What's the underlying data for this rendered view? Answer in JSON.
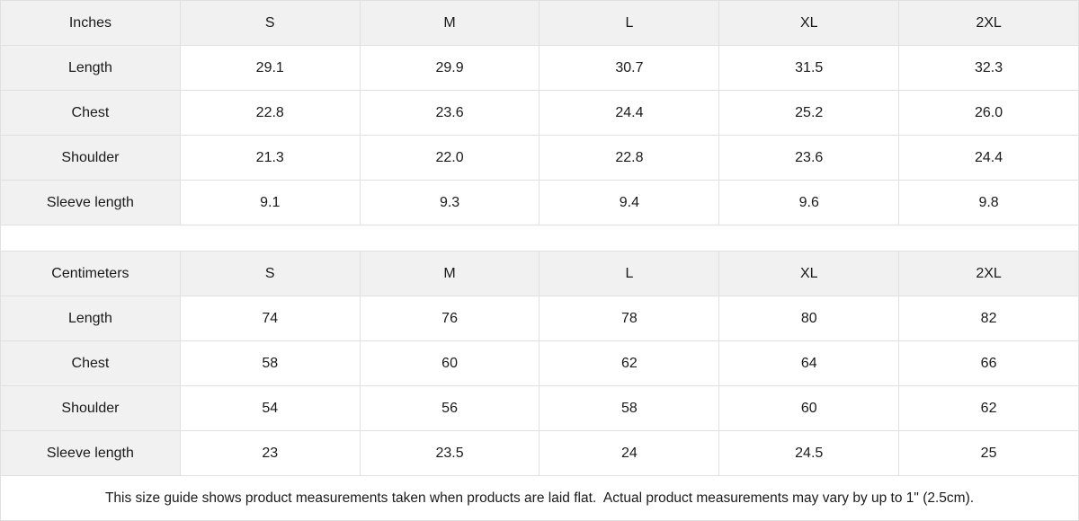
{
  "colors": {
    "header_bg": "#f1f1f1",
    "border": "#e0e0e0",
    "text": "#1a1a1a",
    "background": "#ffffff"
  },
  "tables": [
    {
      "unit_label": "Inches",
      "sizes": [
        "S",
        "M",
        "L",
        "XL",
        "2XL"
      ],
      "rows": [
        {
          "label": "Length",
          "values": [
            "29.1",
            "29.9",
            "30.7",
            "31.5",
            "32.3"
          ]
        },
        {
          "label": "Chest",
          "values": [
            "22.8",
            "23.6",
            "24.4",
            "25.2",
            "26.0"
          ]
        },
        {
          "label": "Shoulder",
          "values": [
            "21.3",
            "22.0",
            "22.8",
            "23.6",
            "24.4"
          ]
        },
        {
          "label": "Sleeve length",
          "values": [
            "9.1",
            "9.3",
            "9.4",
            "9.6",
            "9.8"
          ]
        }
      ]
    },
    {
      "unit_label": "Centimeters",
      "sizes": [
        "S",
        "M",
        "L",
        "XL",
        "2XL"
      ],
      "rows": [
        {
          "label": "Length",
          "values": [
            "74",
            "76",
            "78",
            "80",
            "82"
          ]
        },
        {
          "label": "Chest",
          "values": [
            "58",
            "60",
            "62",
            "64",
            "66"
          ]
        },
        {
          "label": "Shoulder",
          "values": [
            "54",
            "56",
            "58",
            "60",
            "62"
          ]
        },
        {
          "label": "Sleeve length",
          "values": [
            "23",
            "23.5",
            "24",
            "24.5",
            "25"
          ]
        }
      ]
    }
  ],
  "footer": {
    "note": "This size guide shows product measurements taken when products are laid flat.  Actual product measurements may vary by up to 1\" (2.5cm)."
  },
  "chart_data": [
    {
      "type": "table",
      "title": "Size guide (Inches)",
      "columns": [
        "Inches",
        "S",
        "M",
        "L",
        "XL",
        "2XL"
      ],
      "rows": [
        [
          "Length",
          29.1,
          29.9,
          30.7,
          31.5,
          32.3
        ],
        [
          "Chest",
          22.8,
          23.6,
          24.4,
          25.2,
          26.0
        ],
        [
          "Shoulder",
          21.3,
          22.0,
          22.8,
          23.6,
          24.4
        ],
        [
          "Sleeve length",
          9.1,
          9.3,
          9.4,
          9.6,
          9.8
        ]
      ]
    },
    {
      "type": "table",
      "title": "Size guide (Centimeters)",
      "columns": [
        "Centimeters",
        "S",
        "M",
        "L",
        "XL",
        "2XL"
      ],
      "rows": [
        [
          "Length",
          74,
          76,
          78,
          80,
          82
        ],
        [
          "Chest",
          58,
          60,
          62,
          64,
          66
        ],
        [
          "Shoulder",
          54,
          56,
          58,
          60,
          62
        ],
        [
          "Sleeve length",
          23,
          23.5,
          24,
          24.5,
          25
        ]
      ]
    }
  ]
}
